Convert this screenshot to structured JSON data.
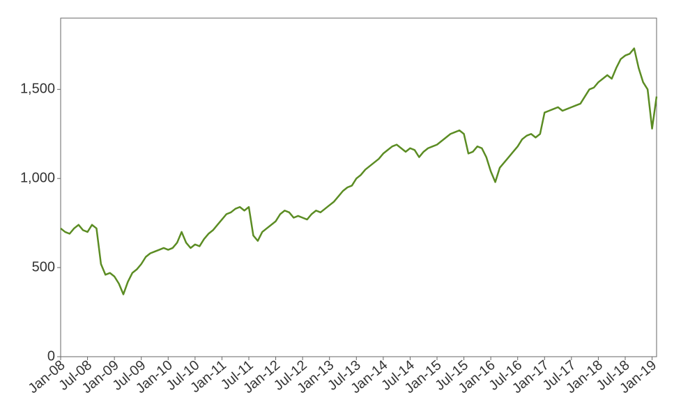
{
  "chart_data": {
    "type": "line",
    "x": [
      "2008-01",
      "2008-02",
      "2008-03",
      "2008-04",
      "2008-05",
      "2008-06",
      "2008-07",
      "2008-08",
      "2008-09",
      "2008-10",
      "2008-11",
      "2008-12",
      "2009-01",
      "2009-02",
      "2009-03",
      "2009-04",
      "2009-05",
      "2009-06",
      "2009-07",
      "2009-08",
      "2009-09",
      "2009-10",
      "2009-11",
      "2009-12",
      "2010-01",
      "2010-02",
      "2010-03",
      "2010-04",
      "2010-05",
      "2010-06",
      "2010-07",
      "2010-08",
      "2010-09",
      "2010-10",
      "2010-11",
      "2010-12",
      "2011-01",
      "2011-02",
      "2011-03",
      "2011-04",
      "2011-05",
      "2011-06",
      "2011-07",
      "2011-08",
      "2011-09",
      "2011-10",
      "2011-11",
      "2011-12",
      "2012-01",
      "2012-02",
      "2012-03",
      "2012-04",
      "2012-05",
      "2012-06",
      "2012-07",
      "2012-08",
      "2012-09",
      "2012-10",
      "2012-11",
      "2012-12",
      "2013-01",
      "2013-02",
      "2013-03",
      "2013-04",
      "2013-05",
      "2013-06",
      "2013-07",
      "2013-08",
      "2013-09",
      "2013-10",
      "2013-11",
      "2013-12",
      "2014-01",
      "2014-02",
      "2014-03",
      "2014-04",
      "2014-05",
      "2014-06",
      "2014-07",
      "2014-08",
      "2014-09",
      "2014-10",
      "2014-11",
      "2014-12",
      "2015-01",
      "2015-02",
      "2015-03",
      "2015-04",
      "2015-05",
      "2015-06",
      "2015-07",
      "2015-08",
      "2015-09",
      "2015-10",
      "2015-11",
      "2015-12",
      "2016-01",
      "2016-02",
      "2016-03",
      "2016-04",
      "2016-05",
      "2016-06",
      "2016-07",
      "2016-08",
      "2016-09",
      "2016-10",
      "2016-11",
      "2016-12",
      "2017-01",
      "2017-02",
      "2017-03",
      "2017-04",
      "2017-05",
      "2017-06",
      "2017-07",
      "2017-08",
      "2017-09",
      "2017-10",
      "2017-11",
      "2017-12",
      "2018-01",
      "2018-02",
      "2018-03",
      "2018-04",
      "2018-05",
      "2018-06",
      "2018-07",
      "2018-08",
      "2018-09",
      "2018-10",
      "2018-11",
      "2018-12",
      "2019-01",
      "2019-02"
    ],
    "series": [
      {
        "name": "Index",
        "color": "#5b8c23",
        "values": [
          720,
          700,
          690,
          720,
          740,
          710,
          700,
          740,
          720,
          520,
          460,
          470,
          450,
          410,
          350,
          420,
          470,
          490,
          520,
          560,
          580,
          590,
          600,
          610,
          600,
          610,
          640,
          700,
          640,
          610,
          630,
          620,
          660,
          690,
          710,
          740,
          770,
          800,
          810,
          830,
          840,
          820,
          840,
          680,
          650,
          700,
          720,
          740,
          760,
          800,
          820,
          810,
          780,
          790,
          780,
          770,
          800,
          820,
          810,
          830,
          850,
          870,
          900,
          930,
          950,
          960,
          1000,
          1020,
          1050,
          1070,
          1090,
          1110,
          1140,
          1160,
          1180,
          1190,
          1170,
          1150,
          1170,
          1160,
          1120,
          1150,
          1170,
          1180,
          1190,
          1210,
          1230,
          1250,
          1260,
          1270,
          1250,
          1140,
          1150,
          1180,
          1170,
          1120,
          1040,
          980,
          1060,
          1090,
          1120,
          1150,
          1180,
          1220,
          1240,
          1250,
          1230,
          1250,
          1370,
          1380,
          1390,
          1400,
          1380,
          1390,
          1400,
          1410,
          1420,
          1460,
          1500,
          1510,
          1540,
          1560,
          1580,
          1560,
          1620,
          1670,
          1690,
          1700,
          1730,
          1620,
          1540,
          1500,
          1280,
          1460
        ]
      }
    ],
    "xlim": [
      "2008-01",
      "2019-02"
    ],
    "xticks": [
      {
        "value": "2008-01",
        "label": "Jan-08"
      },
      {
        "value": "2008-07",
        "label": "Jul-08"
      },
      {
        "value": "2009-01",
        "label": "Jan-09"
      },
      {
        "value": "2009-07",
        "label": "Jul-09"
      },
      {
        "value": "2010-01",
        "label": "Jan-10"
      },
      {
        "value": "2010-07",
        "label": "Jul-10"
      },
      {
        "value": "2011-01",
        "label": "Jan-11"
      },
      {
        "value": "2011-07",
        "label": "Jul-11"
      },
      {
        "value": "2012-01",
        "label": "Jan-12"
      },
      {
        "value": "2012-07",
        "label": "Jul-12"
      },
      {
        "value": "2013-01",
        "label": "Jan-13"
      },
      {
        "value": "2013-07",
        "label": "Jul-13"
      },
      {
        "value": "2014-01",
        "label": "Jan-14"
      },
      {
        "value": "2014-07",
        "label": "Jul-14"
      },
      {
        "value": "2015-01",
        "label": "Jan-15"
      },
      {
        "value": "2015-07",
        "label": "Jul-15"
      },
      {
        "value": "2016-01",
        "label": "Jan-16"
      },
      {
        "value": "2016-07",
        "label": "Jul-16"
      },
      {
        "value": "2017-01",
        "label": "Jan-17"
      },
      {
        "value": "2017-07",
        "label": "Jul-17"
      },
      {
        "value": "2018-01",
        "label": "Jan-18"
      },
      {
        "value": "2018-07",
        "label": "Jul-18"
      },
      {
        "value": "2019-01",
        "label": "Jan-19"
      }
    ],
    "ylim": [
      0,
      1900
    ],
    "yticks": [
      0,
      500,
      {
        "value": 1000,
        "label": "1,000"
      },
      {
        "value": 1500,
        "label": "1,500"
      }
    ],
    "grid": false
  }
}
